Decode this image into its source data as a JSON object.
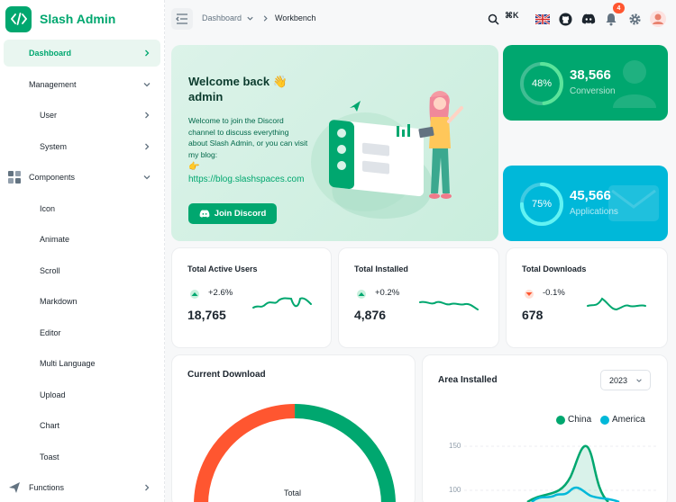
{
  "brand": {
    "name": "Slash Admin",
    "color": "#00a76f"
  },
  "sidebar": {
    "items": [
      {
        "label": "Dashboard",
        "icon": "chevron-right-icon"
      },
      {
        "label": "Management",
        "icon": "chevron-down-icon"
      },
      {
        "label": "User",
        "icon": "chevron-right-icon"
      },
      {
        "label": "System",
        "icon": "chevron-right-icon"
      },
      {
        "label": "Components",
        "icon": "chevron-down-icon"
      },
      {
        "label": "Icon"
      },
      {
        "label": "Animate"
      },
      {
        "label": "Scroll"
      },
      {
        "label": "Markdown"
      },
      {
        "label": "Editor"
      },
      {
        "label": "Multi Language"
      },
      {
        "label": "Upload"
      },
      {
        "label": "Chart"
      },
      {
        "label": "Toast"
      },
      {
        "label": "Functions",
        "icon": "chevron-right-icon"
      }
    ]
  },
  "header": {
    "breadcrumb": [
      "Dashboard",
      "Workbench"
    ],
    "search_shortcut": "⌘K",
    "notification_count": "4",
    "icons": [
      "search-icon",
      "uk-flag-icon",
      "github-icon",
      "discord-icon",
      "bell-icon",
      "gear-icon",
      "avatar"
    ]
  },
  "welcome": {
    "title_line1": "Welcome back 👋",
    "title_line2": "admin",
    "body": "Welcome to join the Discord channel to discuss everything about Slash Admin, or you can visit my blog:",
    "emoji": "👉",
    "blog_url": "https://blog.slashspaces.com",
    "button_label": "Join Discord"
  },
  "stats": [
    {
      "value": "38,566",
      "label": "Conversion",
      "percent": "48%",
      "progress": 0.48,
      "color": "#00a76f"
    },
    {
      "value": "45,566",
      "label": "Applications",
      "percent": "75%",
      "progress": 0.75,
      "color": "#00b8d9"
    }
  ],
  "mini_cards": [
    {
      "title": "Total Active Users",
      "trend": "+2.6%",
      "direction": "up",
      "value": "18,765"
    },
    {
      "title": "Total Installed",
      "trend": "+0.2%",
      "direction": "up",
      "value": "4,876"
    },
    {
      "title": "Total Downloads",
      "trend": "-0.1%",
      "direction": "down",
      "value": "678"
    }
  ],
  "current_download": {
    "title": "Current Download",
    "center_label": "Total"
  },
  "area_installed": {
    "title": "Area Installed",
    "year": "2023",
    "legend": [
      {
        "name": "China",
        "color": "#00a76f"
      },
      {
        "name": "America",
        "color": "#00b8d9"
      }
    ],
    "y_ticks": [
      "150",
      "100"
    ]
  }
}
